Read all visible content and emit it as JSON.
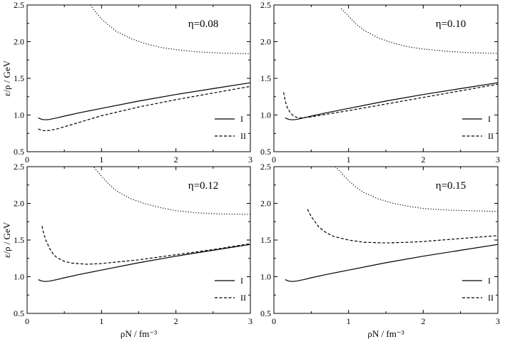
{
  "chart_data": [
    {
      "type": "line",
      "panel_label": "η=0.08",
      "xlim": [
        0,
        3
      ],
      "ylim": [
        0.5,
        2.5
      ],
      "xticks": [
        0,
        1,
        2,
        3
      ],
      "yticks": [
        0.5,
        1.0,
        1.5,
        2.0,
        2.5
      ],
      "xtick_labels": [
        "0",
        "1",
        "2",
        "3"
      ],
      "ytick_labels": [
        "0.5",
        "1.0",
        "1.5",
        "2.0",
        "2.5"
      ],
      "ylabel": "ε/ρ / GeV",
      "xlabel": "",
      "legend": [
        "I",
        "II"
      ],
      "series": [
        {
          "name": "I",
          "style": "solid",
          "x": [
            0.15,
            0.2,
            0.25,
            0.3,
            0.4,
            0.5,
            0.7,
            1.0,
            1.5,
            2.0,
            2.5,
            3.0
          ],
          "y": [
            0.96,
            0.94,
            0.935,
            0.94,
            0.96,
            0.985,
            1.03,
            1.09,
            1.19,
            1.28,
            1.36,
            1.44
          ]
        },
        {
          "name": "II",
          "style": "dashed",
          "x": [
            0.15,
            0.2,
            0.25,
            0.3,
            0.4,
            0.5,
            0.7,
            1.0,
            1.5,
            2.0,
            2.5,
            3.0
          ],
          "y": [
            0.81,
            0.79,
            0.785,
            0.79,
            0.81,
            0.84,
            0.9,
            0.99,
            1.11,
            1.21,
            1.3,
            1.39
          ]
        },
        {
          "name": "",
          "style": "dotted",
          "x": [
            0.85,
            0.9,
            1.0,
            1.1,
            1.2,
            1.4,
            1.6,
            1.8,
            2.0,
            2.3,
            2.6,
            3.0
          ],
          "y": [
            2.5,
            2.43,
            2.31,
            2.22,
            2.14,
            2.04,
            1.97,
            1.92,
            1.89,
            1.86,
            1.845,
            1.835
          ]
        }
      ]
    },
    {
      "type": "line",
      "panel_label": "η=0.10",
      "xlim": [
        0,
        3
      ],
      "ylim": [
        0.5,
        2.5
      ],
      "xticks": [
        0,
        1,
        2,
        3
      ],
      "yticks": [
        0.5,
        1.0,
        1.5,
        2.0,
        2.5
      ],
      "xtick_labels": [
        "0",
        "1",
        "2",
        "3"
      ],
      "ytick_labels": [
        "0.5",
        "1.0",
        "1.5",
        "2.0",
        "2.5"
      ],
      "ylabel": "",
      "xlabel": "",
      "legend": [
        "I",
        "II"
      ],
      "series": [
        {
          "name": "I",
          "style": "solid",
          "x": [
            0.15,
            0.2,
            0.25,
            0.3,
            0.4,
            0.5,
            0.7,
            1.0,
            1.5,
            2.0,
            2.5,
            3.0
          ],
          "y": [
            0.96,
            0.94,
            0.935,
            0.94,
            0.96,
            0.985,
            1.03,
            1.09,
            1.19,
            1.28,
            1.36,
            1.44
          ]
        },
        {
          "name": "II",
          "style": "dashed",
          "x": [
            0.13,
            0.15,
            0.18,
            0.22,
            0.26,
            0.3,
            0.35,
            0.4,
            0.5,
            0.7,
            1.0,
            1.5,
            2.0,
            2.5,
            3.0
          ],
          "y": [
            1.31,
            1.2,
            1.1,
            1.03,
            0.99,
            0.97,
            0.96,
            0.965,
            0.975,
            1.01,
            1.06,
            1.15,
            1.24,
            1.33,
            1.42
          ]
        },
        {
          "name": "",
          "style": "dotted",
          "x": [
            0.9,
            1.0,
            1.1,
            1.2,
            1.4,
            1.6,
            1.8,
            2.0,
            2.3,
            2.6,
            3.0
          ],
          "y": [
            2.45,
            2.35,
            2.24,
            2.16,
            2.05,
            1.98,
            1.93,
            1.9,
            1.87,
            1.85,
            1.84
          ]
        }
      ]
    },
    {
      "type": "line",
      "panel_label": "η=0.12",
      "xlim": [
        0,
        3
      ],
      "ylim": [
        0.5,
        2.5
      ],
      "xticks": [
        0,
        1,
        2,
        3
      ],
      "yticks": [
        0.5,
        1.0,
        1.5,
        2.0,
        2.5
      ],
      "xtick_labels": [
        "0",
        "1",
        "2",
        "3"
      ],
      "ytick_labels": [
        "0.5",
        "1.0",
        "1.5",
        "2.0",
        "2.5"
      ],
      "ylabel": "ε/ρ / GeV",
      "xlabel": "ρN / fm⁻³",
      "legend": [
        "I",
        "II"
      ],
      "series": [
        {
          "name": "I",
          "style": "solid",
          "x": [
            0.15,
            0.2,
            0.25,
            0.3,
            0.4,
            0.5,
            0.7,
            1.0,
            1.5,
            2.0,
            2.5,
            3.0
          ],
          "y": [
            0.96,
            0.94,
            0.935,
            0.94,
            0.96,
            0.985,
            1.03,
            1.09,
            1.19,
            1.28,
            1.36,
            1.44
          ]
        },
        {
          "name": "II",
          "style": "dashed",
          "x": [
            0.2,
            0.22,
            0.25,
            0.3,
            0.35,
            0.4,
            0.5,
            0.6,
            0.8,
            1.0,
            1.5,
            2.0,
            2.5,
            3.0
          ],
          "y": [
            1.69,
            1.6,
            1.5,
            1.39,
            1.31,
            1.26,
            1.21,
            1.185,
            1.17,
            1.18,
            1.23,
            1.3,
            1.37,
            1.45
          ]
        },
        {
          "name": "",
          "style": "dotted",
          "x": [
            0.9,
            1.0,
            1.1,
            1.2,
            1.4,
            1.6,
            1.8,
            2.0,
            2.3,
            2.6,
            3.0
          ],
          "y": [
            2.49,
            2.37,
            2.26,
            2.17,
            2.06,
            1.99,
            1.94,
            1.9,
            1.87,
            1.855,
            1.85
          ]
        }
      ]
    },
    {
      "type": "line",
      "panel_label": "η=0.15",
      "xlim": [
        0,
        3
      ],
      "ylim": [
        0.5,
        2.5
      ],
      "xticks": [
        0,
        1,
        2,
        3
      ],
      "yticks": [
        0.5,
        1.0,
        1.5,
        2.0,
        2.5
      ],
      "xtick_labels": [
        "0",
        "1",
        "2",
        "3"
      ],
      "ytick_labels": [
        "0.5",
        "1.0",
        "1.5",
        "2.0",
        "2.5"
      ],
      "ylabel": "",
      "xlabel": "ρN / fm⁻³",
      "legend": [
        "I",
        "II"
      ],
      "series": [
        {
          "name": "I",
          "style": "solid",
          "x": [
            0.15,
            0.2,
            0.25,
            0.3,
            0.4,
            0.5,
            0.7,
            1.0,
            1.5,
            2.0,
            2.5,
            3.0
          ],
          "y": [
            0.96,
            0.94,
            0.935,
            0.94,
            0.96,
            0.985,
            1.03,
            1.09,
            1.19,
            1.28,
            1.36,
            1.44
          ]
        },
        {
          "name": "II",
          "style": "dashed",
          "x": [
            0.45,
            0.5,
            0.6,
            0.7,
            0.8,
            1.0,
            1.2,
            1.5,
            1.8,
            2.0,
            2.5,
            3.0
          ],
          "y": [
            1.92,
            1.82,
            1.68,
            1.6,
            1.55,
            1.5,
            1.47,
            1.46,
            1.47,
            1.48,
            1.52,
            1.56
          ]
        },
        {
          "name": "",
          "style": "dotted",
          "x": [
            0.82,
            0.9,
            1.0,
            1.1,
            1.2,
            1.4,
            1.6,
            1.8,
            2.0,
            2.3,
            2.6,
            3.0
          ],
          "y": [
            2.5,
            2.42,
            2.31,
            2.22,
            2.15,
            2.06,
            2.0,
            1.96,
            1.93,
            1.91,
            1.9,
            1.89
          ]
        }
      ]
    }
  ]
}
